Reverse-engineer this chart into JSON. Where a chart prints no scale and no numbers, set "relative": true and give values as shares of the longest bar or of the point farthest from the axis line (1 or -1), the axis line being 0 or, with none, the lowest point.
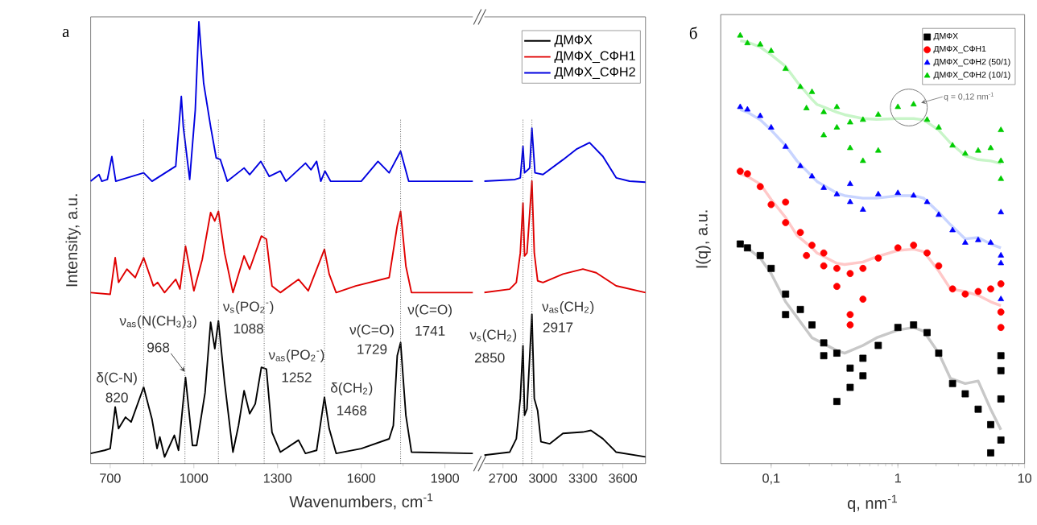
{
  "chart_data": [
    {
      "type": "line",
      "title": "а",
      "xlabel": "Wavenumbers, cm$^{-1}$",
      "ylabel": "Intensity, a.u.",
      "relative": true,
      "xlim": [
        630,
        2000
      ],
      "xticks": [
        700,
        1000,
        1300,
        1600,
        1900
      ],
      "series": [
        {
          "color": "#000000",
          "x": [
            630,
            680,
            700,
            718,
            730,
            755,
            775,
            820,
            850,
            868,
            878,
            895,
            930,
            945,
            970,
            995,
            1010,
            1040,
            1060,
            1075,
            1088,
            1110,
            1140,
            1160,
            1180,
            1200,
            1220,
            1242,
            1260,
            1280,
            1310,
            1375,
            1400,
            1440,
            1468,
            1485,
            1510,
            1600,
            1700,
            1715,
            1729,
            1741,
            1760,
            1780,
            2000
          ],
          "values": [
            0.023,
            0.03,
            0.034,
            0.128,
            0.079,
            0.105,
            0.094,
            0.173,
            0.1,
            0.034,
            0.06,
            0.015,
            0.064,
            0.03,
            0.195,
            0.041,
            0.041,
            0.16,
            0.32,
            0.26,
            0.323,
            0.184,
            0.026,
            0.086,
            0.165,
            0.113,
            0.135,
            0.218,
            0.214,
            0.071,
            0.026,
            0.053,
            0.023,
            0.03,
            0.15,
            0.079,
            0.023,
            0.034,
            0.056,
            0.086,
            0.244,
            0.274,
            0.109,
            0.026,
            0.023
          ]
        },
        {
          "color": "#e00000",
          "x": [
            630,
            700,
            718,
            730,
            760,
            790,
            820,
            855,
            870,
            895,
            935,
            950,
            970,
            1000,
            1030,
            1060,
            1075,
            1088,
            1110,
            1140,
            1180,
            1200,
            1242,
            1260,
            1280,
            1310,
            1375,
            1410,
            1468,
            1485,
            1510,
            1580,
            1700,
            1729,
            1741,
            1760,
            1780,
            2000
          ],
          "values": [
            0.387,
            0.383,
            0.466,
            0.41,
            0.44,
            0.421,
            0.466,
            0.402,
            0.41,
            0.387,
            0.417,
            0.395,
            0.492,
            0.391,
            0.462,
            0.568,
            0.549,
            0.571,
            0.477,
            0.387,
            0.47,
            0.44,
            0.515,
            0.508,
            0.402,
            0.387,
            0.417,
            0.391,
            0.485,
            0.429,
            0.387,
            0.402,
            0.421,
            0.538,
            0.571,
            0.447,
            0.387,
            0.387
          ]
        },
        {
          "color": "#0000e0",
          "x": [
            630,
            660,
            670,
            690,
            706,
            720,
            820,
            850,
            935,
            955,
            962,
            985,
            1005,
            1018,
            1035,
            1060,
            1080,
            1095,
            1120,
            1180,
            1200,
            1240,
            1270,
            1310,
            1330,
            1400,
            1420,
            1440,
            1455,
            1470,
            1490,
            1600,
            1660,
            1700,
            1741,
            1770,
            2000
          ],
          "values": [
            0.639,
            0.654,
            0.639,
            0.643,
            0.695,
            0.639,
            0.658,
            0.639,
            0.673,
            0.831,
            0.763,
            0.643,
            0.8,
            1.0,
            0.861,
            0.763,
            0.692,
            0.688,
            0.639,
            0.669,
            0.654,
            0.684,
            0.65,
            0.662,
            0.639,
            0.68,
            0.665,
            0.684,
            0.639,
            0.662,
            0.639,
            0.639,
            0.684,
            0.658,
            0.707,
            0.639,
            0.639
          ]
        }
      ],
      "ref_lines": [
        {
          "axis": "x",
          "value": 820,
          "color": "#555555",
          "line_style": "dotted"
        },
        {
          "axis": "x",
          "value": 968,
          "color": "#555555",
          "line_style": "dotted"
        },
        {
          "axis": "x",
          "value": 1088,
          "color": "#555555",
          "line_style": "dotted"
        },
        {
          "axis": "x",
          "value": 1252,
          "color": "#555555",
          "line_style": "dotted"
        },
        {
          "axis": "x",
          "value": 1468,
          "color": "#555555",
          "line_style": "dotted"
        },
        {
          "axis": "x",
          "value": 1741,
          "color": "#555555",
          "line_style": "dotted"
        }
      ],
      "annotations": [
        "δ(C-N)",
        "820",
        "ν$_{as}$(N(CH$_{3}$)$_{3}$)",
        "968",
        "ν$_{s}$(PO$_{2}$$^{-}$)",
        "1088",
        "ν$_{as}$(PO$_{2}$$^{-}$)",
        "1252",
        "δ(CH$_{2}$)",
        "1468",
        "ν(C=O)",
        "1729",
        "ν(C=O)",
        "1741"
      ]
    },
    {
      "type": "line",
      "relative": true,
      "xlim": [
        2560,
        3770
      ],
      "xticks": [
        2700,
        3000,
        3300,
        3600
      ],
      "legend": "top right",
      "series": [
        {
          "name": "ДМФХ",
          "color": "#000000",
          "x": [
            2560,
            2750,
            2800,
            2830,
            2850,
            2862,
            2880,
            2917,
            2935,
            2960,
            2985,
            3050,
            3150,
            3300,
            3360,
            3450,
            3550,
            3770
          ],
          "values": [
            0.025,
            0.034,
            0.074,
            0.194,
            0.352,
            0.144,
            0.163,
            0.445,
            0.194,
            0.158,
            0.065,
            0.059,
            0.09,
            0.094,
            0.099,
            0.074,
            0.034,
            0.02
          ]
        },
        {
          "name": "ДМФХ_СФН1",
          "color": "#e00000",
          "x": [
            2560,
            2750,
            2800,
            2830,
            2850,
            2862,
            2880,
            2917,
            2935,
            2960,
            3000,
            3150,
            3300,
            3400,
            3550,
            3770
          ],
          "values": [
            0.51,
            0.52,
            0.54,
            0.628,
            0.777,
            0.619,
            0.628,
            0.842,
            0.628,
            0.545,
            0.54,
            0.565,
            0.58,
            0.569,
            0.53,
            0.51
          ]
        },
        {
          "name": "ДМФХ_СФН2",
          "color": "#0000e0",
          "x": [
            2560,
            2790,
            2830,
            2850,
            2862,
            2900,
            2917,
            2940,
            3000,
            3150,
            3250,
            3350,
            3450,
            3550,
            3650,
            3770
          ],
          "values": [
            0.842,
            0.847,
            0.852,
            0.946,
            0.867,
            0.881,
            1.0,
            0.867,
            0.862,
            0.906,
            0.937,
            0.957,
            0.916,
            0.852,
            0.842,
            0.839
          ]
        }
      ],
      "ref_lines": [
        {
          "axis": "x",
          "value": 2850,
          "color": "#555555",
          "line_style": "dotted"
        },
        {
          "axis": "x",
          "value": 2917,
          "color": "#555555",
          "line_style": "dotted"
        }
      ],
      "annotations": [
        "ν$_{s}$(CH$_{2}$)",
        "2850",
        "ν$_{as}$(CH$_{2}$)",
        "2917"
      ]
    },
    {
      "type": "scatter",
      "title": "б",
      "xlabel": "q, nm$^{-1}$",
      "ylabel": "I(q), a.u.",
      "relative": true,
      "log": "x",
      "xlim": [
        0.04,
        10
      ],
      "xticks": [
        {
          "value": 0.1,
          "label": "0,1"
        },
        1,
        10
      ],
      "legend": "top right",
      "series": [
        {
          "name": "ДМФХ",
          "type": "scatter",
          "marker": "square",
          "color": "#000000",
          "x": [
            0.057,
            0.065,
            0.082,
            0.1,
            0.13,
            0.13,
            0.17,
            0.21,
            0.26,
            0.26,
            0.33,
            0.33,
            0.42,
            0.42,
            0.53,
            0.53,
            0.7,
            1,
            1.33,
            1.7,
            2.1,
            2.7,
            3.4,
            4.3,
            5.4,
            5.4,
            6.5,
            6.5,
            6.5,
            6.5
          ],
          "values": [
            0.513,
            0.504,
            0.486,
            0.456,
            0.396,
            0.348,
            0.36,
            0.324,
            0.282,
            0.252,
            0.258,
            0.145,
            0.223,
            0.178,
            0.246,
            0.205,
            0.276,
            0.318,
            0.324,
            0.306,
            0.258,
            0.187,
            0.163,
            0.127,
            0.091,
            0.025,
            0.217,
            0.151,
            0.055,
            0.252
          ]
        },
        {
          "name": "ДМФХ_СФН1",
          "type": "scatter",
          "marker": "circle",
          "color": "#ff0000",
          "x": [
            0.057,
            0.065,
            0.082,
            0.1,
            0.13,
            0.13,
            0.17,
            0.21,
            0.19,
            0.26,
            0.26,
            0.33,
            0.33,
            0.42,
            0.42,
            0.42,
            0.53,
            0.53,
            0.7,
            1,
            1.33,
            1.7,
            2.1,
            2.7,
            3.4,
            4.3,
            5.4,
            6.5,
            6.5,
            6.5
          ],
          "values": [
            0.683,
            0.677,
            0.647,
            0.605,
            0.563,
            0.611,
            0.54,
            0.51,
            0.486,
            0.492,
            0.462,
            0.456,
            0.414,
            0.444,
            0.348,
            0.324,
            0.456,
            0.384,
            0.48,
            0.504,
            0.51,
            0.492,
            0.462,
            0.408,
            0.396,
            0.402,
            0.408,
            0.42,
            0.354,
            0.318
          ]
        },
        {
          "name": "ДМФХ_СФН2 (50/1)",
          "type": "scatter",
          "marker": "triangle",
          "color": "#0000ff",
          "x": [
            0.057,
            0.065,
            0.082,
            0.1,
            0.13,
            0.17,
            0.21,
            0.26,
            0.33,
            0.42,
            0.42,
            0.53,
            0.7,
            1,
            1.33,
            1.7,
            2.1,
            2.7,
            3.4,
            4.3,
            5.4,
            6.5,
            6.5,
            6.5,
            6.5
          ],
          "values": [
            0.833,
            0.827,
            0.812,
            0.785,
            0.74,
            0.695,
            0.671,
            0.644,
            0.629,
            0.611,
            0.653,
            0.593,
            0.629,
            0.632,
            0.626,
            0.611,
            0.581,
            0.545,
            0.516,
            0.522,
            0.516,
            0.587,
            0.486,
            0.384,
            0.468
          ]
        },
        {
          "name": "ДМФХ_СФН2 (10/1)",
          "type": "scatter",
          "marker": "triangle",
          "color": "#00cc00",
          "x": [
            0.057,
            0.065,
            0.082,
            0.1,
            0.13,
            0.17,
            0.19,
            0.21,
            0.26,
            0.26,
            0.33,
            0.33,
            0.42,
            0.42,
            0.53,
            0.53,
            0.7,
            0.7,
            1,
            1.33,
            1.7,
            2.1,
            2.7,
            3.4,
            4.3,
            5.4,
            6.5,
            6.5,
            6.5
          ],
          "values": [
            1.0,
            0.982,
            0.979,
            0.964,
            0.922,
            0.88,
            0.83,
            0.868,
            0.821,
            0.767,
            0.833,
            0.785,
            0.797,
            0.737,
            0.803,
            0.707,
            0.815,
            0.731,
            0.833,
            0.839,
            0.803,
            0.785,
            0.743,
            0.724,
            0.731,
            0.737,
            0.779,
            0.665,
            0.707
          ]
        },
        {
          "type": "line",
          "color": "#c8c8c8",
          "x": [
            0.057,
            0.065,
            0.082,
            0.1,
            0.13,
            0.16,
            0.21,
            0.23,
            0.33,
            0.38,
            0.53,
            0.68,
            1,
            1.33,
            1.6,
            2.1,
            2.6,
            3.4,
            4.3,
            5.4,
            6.5
          ],
          "values": [
            0.51,
            0.504,
            0.48,
            0.444,
            0.378,
            0.342,
            0.294,
            0.288,
            0.264,
            0.258,
            0.276,
            0.294,
            0.312,
            0.318,
            0.309,
            0.258,
            0.199,
            0.187,
            0.193,
            0.127,
            0.079
          ]
        },
        {
          "type": "line",
          "color": "#ffc8c8",
          "x": [
            0.057,
            0.065,
            0.082,
            0.1,
            0.13,
            0.16,
            0.21,
            0.23,
            0.33,
            0.38,
            0.53,
            0.68,
            1,
            1.33,
            1.6,
            2.1,
            2.6,
            3.4,
            4.3,
            5.4,
            6.5
          ],
          "values": [
            0.677,
            0.671,
            0.653,
            0.617,
            0.575,
            0.533,
            0.504,
            0.492,
            0.468,
            0.465,
            0.471,
            0.483,
            0.498,
            0.501,
            0.495,
            0.45,
            0.408,
            0.402,
            0.393,
            0.378,
            0.369
          ]
        },
        {
          "type": "line",
          "color": "#c8d4ff",
          "x": [
            0.057,
            0.065,
            0.082,
            0.1,
            0.13,
            0.16,
            0.21,
            0.23,
            0.33,
            0.38,
            0.53,
            0.68,
            1,
            1.33,
            1.6,
            2.1,
            2.6,
            3.4,
            4.3,
            5.4,
            6.5
          ],
          "values": [
            0.827,
            0.821,
            0.803,
            0.779,
            0.743,
            0.707,
            0.671,
            0.659,
            0.632,
            0.626,
            0.62,
            0.62,
            0.626,
            0.626,
            0.62,
            0.587,
            0.558,
            0.525,
            0.528,
            0.513,
            0.504
          ]
        },
        {
          "type": "line",
          "color": "#c8f5c8",
          "x": [
            0.057,
            0.065,
            0.082,
            0.1,
            0.13,
            0.16,
            0.21,
            0.23,
            0.33,
            0.38,
            0.53,
            0.68,
            1,
            1.33,
            1.6,
            2.1,
            2.6,
            3.4,
            4.3,
            5.4,
            6.5
          ],
          "values": [
            0.988,
            0.985,
            0.973,
            0.955,
            0.928,
            0.892,
            0.851,
            0.839,
            0.821,
            0.815,
            0.806,
            0.804,
            0.806,
            0.806,
            0.803,
            0.779,
            0.749,
            0.719,
            0.71,
            0.707,
            0.701
          ]
        }
      ],
      "annotations": [
        "q = 0,12 nm$^{-1}$"
      ]
    }
  ]
}
